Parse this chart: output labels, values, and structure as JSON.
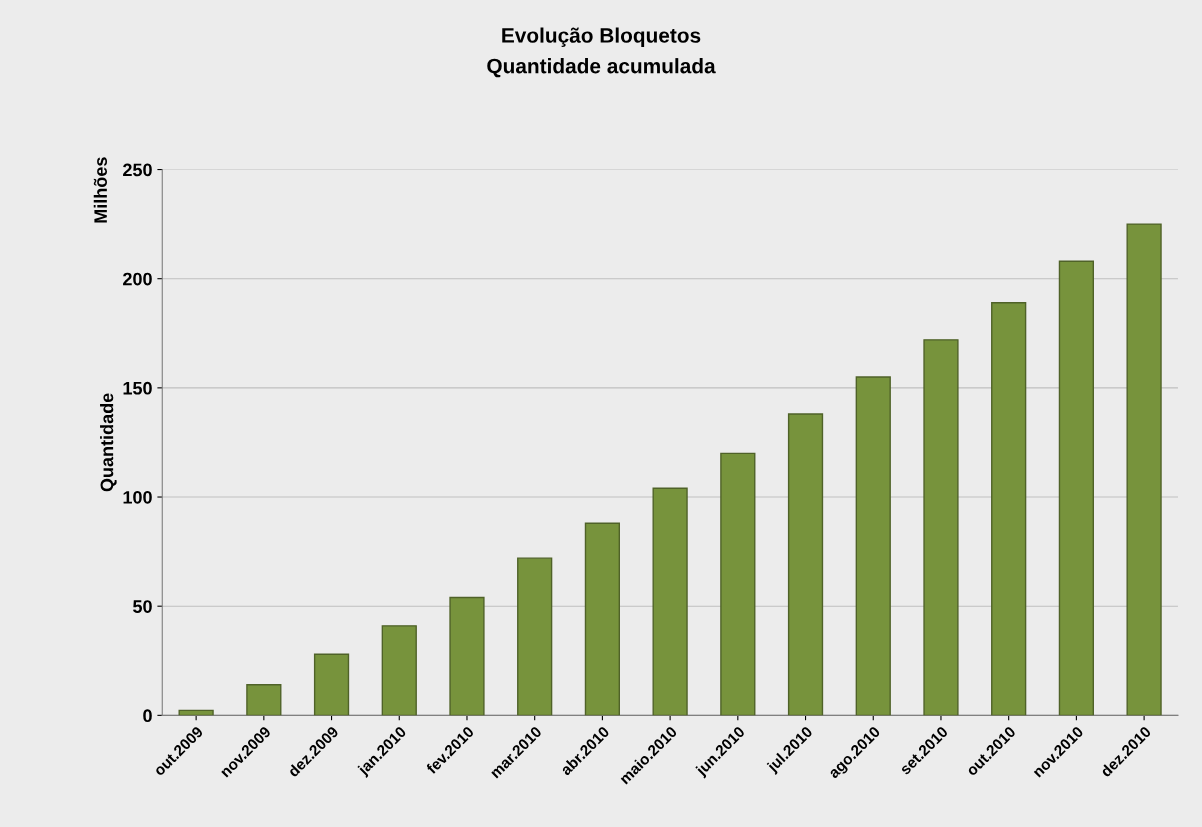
{
  "chart_data": {
    "type": "bar",
    "title": "Evolução Bloquetos",
    "subtitle": "Quantidade acumulada",
    "ylabel": "Quantidade",
    "annotations": [
      "Milhões"
    ],
    "categories": [
      "out.2009",
      "nov.2009",
      "dez.2009",
      "jan.2010",
      "fev.2010",
      "mar.2010",
      "abr.2010",
      "maio.2010",
      "jun.2010",
      "jul.2010",
      "ago.2010",
      "set.2010",
      "out.2010",
      "nov.2010",
      "dez.2010"
    ],
    "values": [
      2.3,
      14,
      28,
      41,
      54,
      72,
      88,
      104,
      120,
      138,
      155,
      172,
      189,
      208,
      225
    ],
    "color": "#77933c",
    "ylim": [
      0,
      250
    ],
    "yticks": [
      0,
      50,
      100,
      150,
      200,
      250
    ],
    "grid": "y"
  }
}
